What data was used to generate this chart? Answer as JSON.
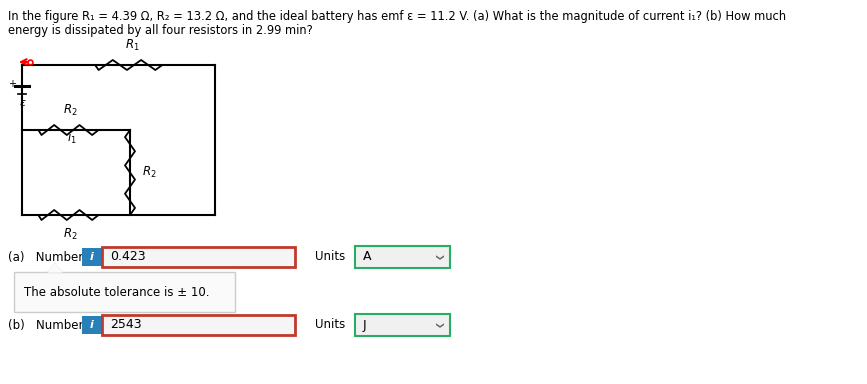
{
  "title_line1": "In the figure R₁ = 4.39 Ω, R₂ = 13.2 Ω, and the ideal battery has emf ε = 11.2 V. (a) What is the magnitude of current i₁? (b) How much",
  "title_line2": "energy is dissipated by all four resistors in 2.99 min?",
  "part_a_value": "0.423",
  "part_a_units_value": "A",
  "part_b_value": "2543",
  "part_b_units_value": "J",
  "tooltip_text": "The absolute tolerance is ± 10.",
  "info_btn_color": "#2980b9",
  "input_border_color": "#c0392b",
  "units_border_color": "#27ae60",
  "bg_color": "#ffffff",
  "text_color": "#000000",
  "circuit_color": "#000000"
}
